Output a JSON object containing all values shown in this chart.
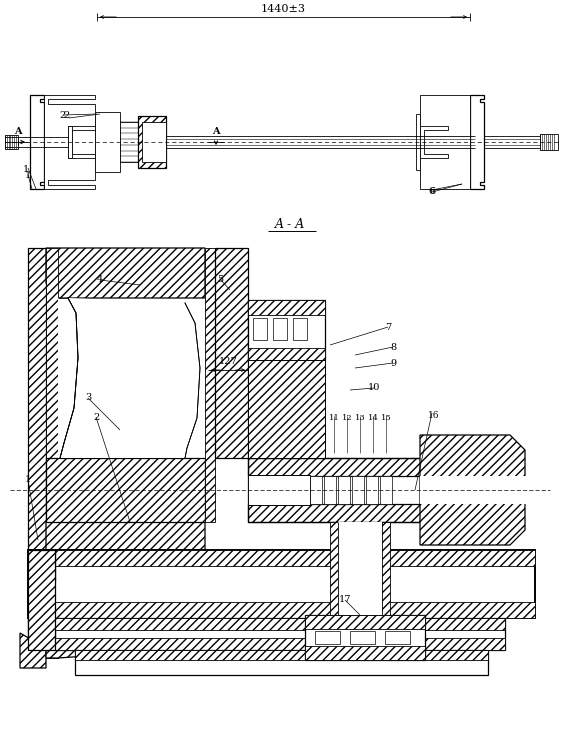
{
  "bg": "#ffffff",
  "lc": "#000000",
  "dim_label": "1440±3",
  "sec_label": "A - A",
  "dim_127": "127",
  "fig_w": 5.63,
  "fig_h": 7.43,
  "dpi": 100,
  "lw_thin": 0.6,
  "lw_med": 0.9,
  "lw_thick": 1.4,
  "hatch": "////",
  "fs_label": 7.0,
  "fs_dim": 7.5,
  "fs_sec": 8.5
}
